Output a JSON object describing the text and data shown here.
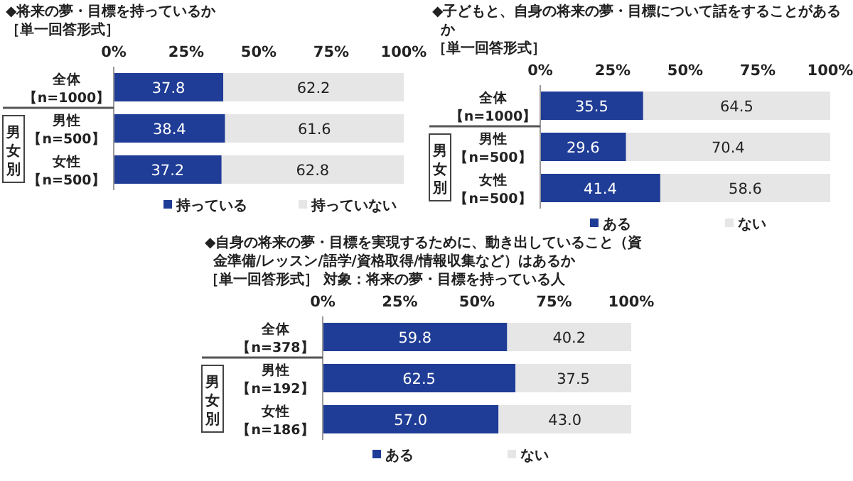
{
  "chart_data": [
    {
      "type": "bar",
      "orientation": "horizontal",
      "stacked": true,
      "title": "◆将来の夢・目標を持っているか",
      "subtitle": "［単一回答形式］",
      "categories": [
        "全体【n=1000】",
        "男性【n=500】",
        "女性【n=500】"
      ],
      "series": [
        {
          "name": "持っている",
          "color": "#1f3c96",
          "values": [
            37.8,
            38.4,
            37.2
          ]
        },
        {
          "name": "持っていない",
          "color": "#e6e6e6",
          "values": [
            62.2,
            61.6,
            62.8
          ]
        }
      ],
      "xlim": [
        0,
        100
      ],
      "xticks": [
        {
          "value": 0,
          "label": "0%"
        },
        {
          "value": 25,
          "label": "25%"
        },
        {
          "value": 50,
          "label": "50%"
        },
        {
          "value": 75,
          "label": "75%"
        },
        {
          "value": 100,
          "label": "100%"
        }
      ],
      "data_labels": true,
      "legend": "bottom",
      "grid": false,
      "annotations": [
        "男女別"
      ]
    },
    {
      "type": "bar",
      "orientation": "horizontal",
      "stacked": true,
      "title": "◆子どもと、自身の将来の夢・目標について話をすることがあるか",
      "subtitle": "［単一回答形式］",
      "categories": [
        "全体【n=1000】",
        "男性【n=500】",
        "女性【n=500】"
      ],
      "series": [
        {
          "name": "ある",
          "color": "#1f3c96",
          "values": [
            35.5,
            29.6,
            41.4
          ]
        },
        {
          "name": "ない",
          "color": "#e6e6e6",
          "values": [
            64.5,
            70.4,
            58.6
          ]
        }
      ],
      "xlim": [
        0,
        100
      ],
      "xticks": [
        {
          "value": 0,
          "label": "0%"
        },
        {
          "value": 25,
          "label": "25%"
        },
        {
          "value": 50,
          "label": "50%"
        },
        {
          "value": 75,
          "label": "75%"
        },
        {
          "value": 100,
          "label": "100%"
        }
      ],
      "data_labels": true,
      "legend": "bottom",
      "grid": false,
      "annotations": [
        "男女別"
      ]
    },
    {
      "type": "bar",
      "orientation": "horizontal",
      "stacked": true,
      "title": "◆自身の将来の夢・目標を実現するために、動き出していること（資金準備/レッスン/語学/資格取得/情報収集など）はあるか",
      "subtitle": "［単一回答形式］ 対象：将来の夢・目標を持っている人",
      "categories": [
        "全体【n=378】",
        "男性【n=192】",
        "女性【n=186】"
      ],
      "series": [
        {
          "name": "ある",
          "color": "#1f3c96",
          "values": [
            59.8,
            62.5,
            57.0
          ],
          "value_labels": [
            "59.8",
            "62.5",
            "57.0"
          ]
        },
        {
          "name": "ない",
          "color": "#e6e6e6",
          "values": [
            40.2,
            37.5,
            43.0
          ],
          "value_labels": [
            "40.2",
            "37.5",
            "43.0"
          ]
        }
      ],
      "xlim": [
        0,
        100
      ],
      "xticks": [
        {
          "value": 0,
          "label": "0%"
        },
        {
          "value": 25,
          "label": "25%"
        },
        {
          "value": 50,
          "label": "50%"
        },
        {
          "value": 75,
          "label": "75%"
        },
        {
          "value": 100,
          "label": "100%"
        }
      ],
      "legend": "bottom",
      "grid": false,
      "annotations": [
        "男女別"
      ]
    }
  ]
}
